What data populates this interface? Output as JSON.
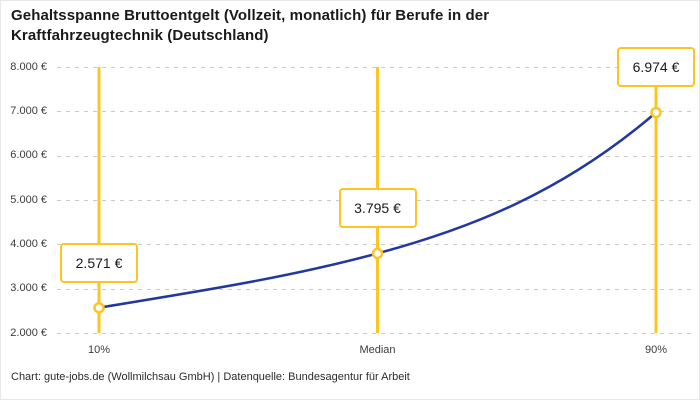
{
  "title": "Gehaltsspanne Bruttoentgelt (Vollzeit, monatlich) für Berufe in der Kraftfahrzeugtechnik (Deutschland)",
  "footer": "Chart: gute-jobs.de (Wollmilchsau GmbH) | Datenquelle: Bundesagentur für Arbeit",
  "colors": {
    "accent_yellow": "#FDC521",
    "line_blue": "#22389F",
    "grid_gray": "#C9C9C9",
    "text_dark": "#1A1A1A",
    "tick_text": "#3C3C3C",
    "background": "#FFFFFF"
  },
  "chart_data": {
    "type": "line",
    "title": "Gehaltsspanne Bruttoentgelt (Vollzeit, monatlich) für Berufe in der Kraftfahrzeugtechnik (Deutschland)",
    "categories": [
      "10%",
      "Median",
      "90%"
    ],
    "values": [
      2571,
      3795,
      6974
    ],
    "value_labels": [
      "2.571 €",
      "3.795 €",
      "6.974 €"
    ],
    "xlabel": "",
    "ylabel": "",
    "ylim": [
      2000,
      8000
    ],
    "y_ticks": [
      {
        "value": 2000,
        "label": "2.000 €"
      },
      {
        "value": 3000,
        "label": "3.000 €"
      },
      {
        "value": 4000,
        "label": "4.000 €"
      },
      {
        "value": 5000,
        "label": "5.000 €"
      },
      {
        "value": 6000,
        "label": "6.000 €"
      },
      {
        "value": 7000,
        "label": "7.000 €"
      },
      {
        "value": 8000,
        "label": "8.000 €"
      }
    ],
    "grid": "horizontal-dashed",
    "legend": "none",
    "markers": "open-circle-on-vertical-guide"
  }
}
